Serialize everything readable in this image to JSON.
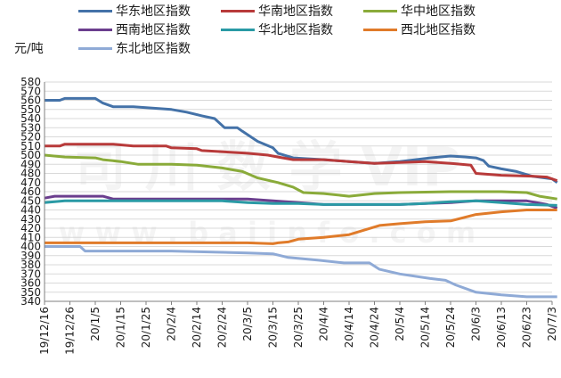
{
  "chart_data": {
    "type": "line",
    "title": "",
    "xlabel": "",
    "ylabel": "元/吨",
    "ylim": [
      340,
      580
    ],
    "ytick_step": 10,
    "grid": true,
    "legend_position": "top",
    "x_ticks": [
      "19/12/16",
      "19/12/26",
      "20/1/5",
      "20/1/15",
      "20/1/25",
      "20/2/4",
      "20/2/14",
      "20/2/24",
      "20/3/5",
      "20/3/15",
      "20/3/25",
      "20/4/4",
      "20/4/14",
      "20/4/24",
      "20/5/4",
      "20/5/14",
      "20/5/24",
      "20/6/3",
      "20/6/13",
      "20/6/23",
      "20/7/3"
    ],
    "y_ticks": [
      "340",
      "350",
      "360",
      "370",
      "380",
      "390",
      "400",
      "410",
      "420",
      "430",
      "440",
      "450",
      "460",
      "470",
      "480",
      "490",
      "500",
      "510",
      "520",
      "530",
      "540",
      "550",
      "560",
      "570",
      "580"
    ],
    "series": [
      {
        "name": "华东地区指数",
        "color": "#4472a8",
        "x": [
          "2019-12-16",
          "2019-12-22",
          "2019-12-24",
          "2020-01-01",
          "2020-01-05",
          "2020-01-08",
          "2020-01-12",
          "2020-01-20",
          "2020-02-04",
          "2020-02-10",
          "2020-02-16",
          "2020-02-21",
          "2020-02-25",
          "2020-03-01",
          "2020-03-03",
          "2020-03-09",
          "2020-03-15",
          "2020-03-17",
          "2020-03-23",
          "2020-04-04",
          "2020-04-14",
          "2020-04-24",
          "2020-05-04",
          "2020-05-16",
          "2020-05-24",
          "2020-05-30",
          "2020-06-03",
          "2020-06-06",
          "2020-06-08",
          "2020-06-13",
          "2020-06-19",
          "2020-06-25",
          "2020-07-03",
          "2020-07-05"
        ],
        "values": [
          560,
          560,
          562,
          562,
          562,
          557,
          553,
          553,
          550,
          547,
          543,
          540,
          530,
          530,
          526,
          515,
          508,
          502,
          497,
          495,
          493,
          491,
          493,
          497,
          499,
          498,
          497,
          494,
          488,
          485,
          482,
          477,
          474,
          470
        ]
      },
      {
        "name": "华南地区指数",
        "color": "#b83a3a",
        "x": [
          "2019-12-16",
          "2019-12-22",
          "2019-12-24",
          "2020-01-12",
          "2020-01-20",
          "2020-02-02",
          "2020-02-04",
          "2020-02-14",
          "2020-02-16",
          "2020-03-05",
          "2020-03-13",
          "2020-03-17",
          "2020-03-23",
          "2020-04-04",
          "2020-04-14",
          "2020-04-24",
          "2020-05-04",
          "2020-05-14",
          "2020-05-24",
          "2020-06-01",
          "2020-06-03",
          "2020-06-13",
          "2020-06-25",
          "2020-07-01",
          "2020-07-05"
        ],
        "values": [
          510,
          510,
          512,
          512,
          510,
          510,
          508,
          507,
          505,
          502,
          500,
          498,
          495,
          495,
          493,
          491,
          492,
          493,
          491,
          489,
          480,
          478,
          477,
          476,
          472
        ]
      },
      {
        "name": "华中地区指数",
        "color": "#8aab3a",
        "x": [
          "2019-12-16",
          "2019-12-24",
          "2020-01-05",
          "2020-01-08",
          "2020-01-15",
          "2020-01-22",
          "2020-02-04",
          "2020-02-14",
          "2020-02-24",
          "2020-03-03",
          "2020-03-09",
          "2020-03-17",
          "2020-03-23",
          "2020-03-27",
          "2020-04-04",
          "2020-04-14",
          "2020-04-24",
          "2020-05-04",
          "2020-05-24",
          "2020-06-03",
          "2020-06-13",
          "2020-06-23",
          "2020-06-28",
          "2020-07-05"
        ],
        "values": [
          500,
          498,
          497,
          495,
          493,
          490,
          490,
          489,
          486,
          482,
          475,
          470,
          465,
          459,
          458,
          455,
          458,
          459,
          460,
          460,
          460,
          459,
          455,
          452
        ]
      },
      {
        "name": "西南地区指数",
        "color": "#6b3e8e",
        "x": [
          "2019-12-16",
          "2019-12-20",
          "2020-01-08",
          "2020-01-12",
          "2020-03-05",
          "2020-03-15",
          "2020-03-25",
          "2020-04-04",
          "2020-04-14",
          "2020-04-24",
          "2020-05-04",
          "2020-05-14",
          "2020-05-24",
          "2020-06-03",
          "2020-06-13",
          "2020-06-23",
          "2020-07-01",
          "2020-07-05"
        ],
        "values": [
          453,
          455,
          455,
          452,
          452,
          450,
          448,
          446,
          446,
          446,
          446,
          447,
          448,
          450,
          450,
          450,
          446,
          442
        ]
      },
      {
        "name": "华北地区指数",
        "color": "#2a9aa5",
        "x": [
          "2019-12-16",
          "2019-12-24",
          "2020-02-24",
          "2020-03-05",
          "2020-03-15",
          "2020-03-25",
          "2020-04-04",
          "2020-04-14",
          "2020-04-24",
          "2020-05-04",
          "2020-05-14",
          "2020-05-24",
          "2020-06-03",
          "2020-06-13",
          "2020-06-23",
          "2020-07-05"
        ],
        "values": [
          448,
          450,
          450,
          448,
          447,
          447,
          446,
          446,
          446,
          446,
          447,
          449,
          450,
          448,
          446,
          445
        ]
      },
      {
        "name": "西北地区指数",
        "color": "#e07b2a",
        "x": [
          "2019-12-16",
          "2020-01-05",
          "2020-02-04",
          "2020-03-05",
          "2020-03-15",
          "2020-03-17",
          "2020-03-21",
          "2020-03-25",
          "2020-04-04",
          "2020-04-14",
          "2020-04-20",
          "2020-04-26",
          "2020-05-04",
          "2020-05-14",
          "2020-05-24",
          "2020-06-03",
          "2020-06-13",
          "2020-06-23",
          "2020-07-05"
        ],
        "values": [
          404,
          404,
          404,
          404,
          403,
          404,
          405,
          408,
          410,
          413,
          418,
          423,
          425,
          427,
          428,
          435,
          438,
          440,
          440
        ]
      },
      {
        "name": "东北地区指数",
        "color": "#8faad6",
        "x": [
          "2019-12-16",
          "2019-12-30",
          "2020-01-01",
          "2020-01-05",
          "2020-02-04",
          "2020-03-05",
          "2020-03-15",
          "2020-03-21",
          "2020-04-02",
          "2020-04-12",
          "2020-04-22",
          "2020-04-26",
          "2020-05-04",
          "2020-05-16",
          "2020-05-22",
          "2020-05-26",
          "2020-06-03",
          "2020-06-13",
          "2020-06-23",
          "2020-07-05"
        ],
        "values": [
          400,
          400,
          395,
          395,
          395,
          393,
          392,
          388,
          385,
          382,
          382,
          375,
          370,
          365,
          363,
          358,
          350,
          347,
          345,
          345
        ]
      }
    ]
  }
}
